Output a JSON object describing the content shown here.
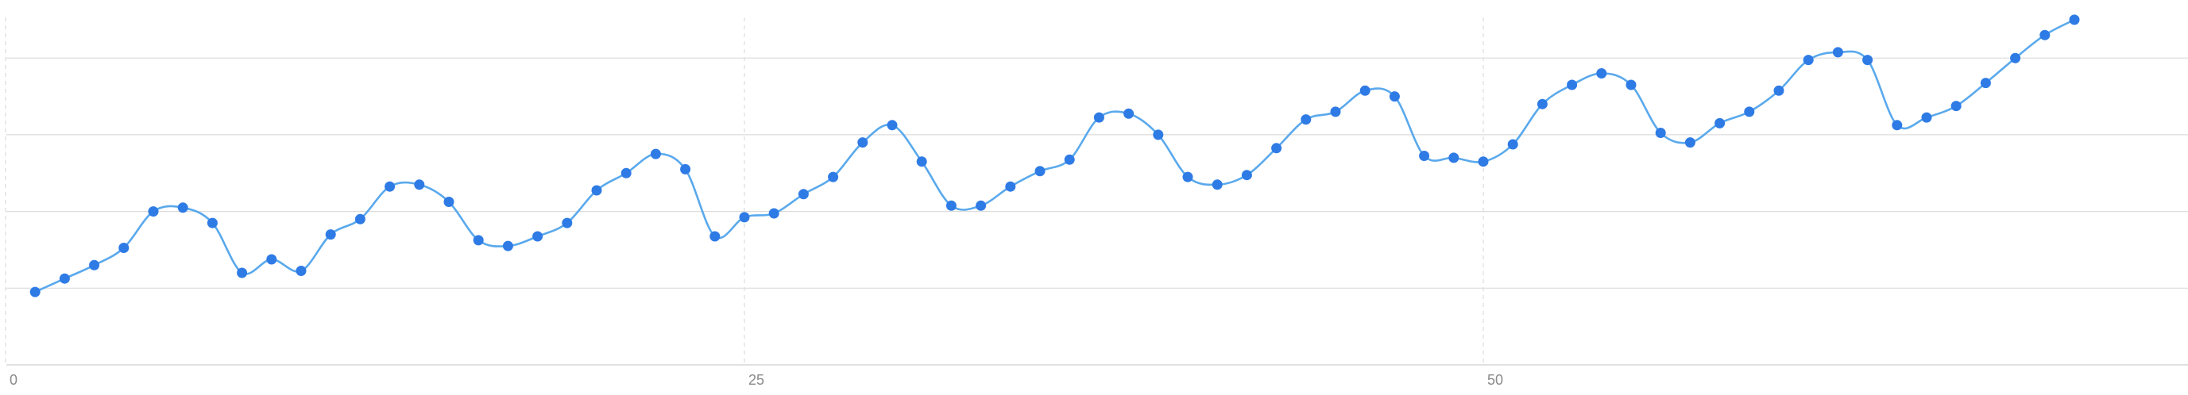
{
  "chart_data": {
    "type": "line",
    "title": "",
    "xlabel": "",
    "ylabel": "",
    "xlim": [
      -0.5,
      73
    ],
    "ylim": [
      0,
      100
    ],
    "x_ticks": [
      0,
      25,
      50
    ],
    "x_tick_labels": [
      "0",
      "25",
      "50"
    ],
    "y_gridlines": [
      20,
      40,
      60,
      80
    ],
    "grid": {
      "horizontal": true,
      "vertical": "dashed"
    },
    "legend": "none",
    "colors": {
      "line": "#5aa9ec",
      "marker": "#2f7be5",
      "grid": "#dcdcdc",
      "tick_label": "#8a8a8a"
    },
    "series": [
      {
        "x": [
          1,
          2,
          3,
          4,
          5,
          6,
          7,
          8,
          9,
          10,
          11,
          12,
          13,
          14,
          15,
          16,
          17,
          18,
          19,
          20,
          21,
          22,
          23,
          24,
          25,
          26,
          27,
          28,
          29,
          30,
          31,
          32,
          33,
          34,
          35,
          36,
          37,
          38,
          39,
          40,
          41,
          42,
          43,
          44,
          45,
          46,
          47,
          48,
          49,
          50,
          51,
          52,
          53,
          54,
          55,
          56,
          57,
          58,
          59,
          60,
          61,
          62,
          63,
          64,
          65,
          66,
          67,
          68,
          69,
          70
        ],
        "values": [
          19,
          22.5,
          26,
          30.5,
          40,
          41,
          37,
          24,
          27.5,
          24.5,
          34,
          38,
          46.5,
          47,
          42.5,
          32.5,
          31,
          33.5,
          37,
          45.5,
          50,
          55,
          51,
          33.5,
          38.5,
          39.5,
          44.5,
          49,
          58,
          62.5,
          53,
          41.5,
          41.5,
          46.5,
          50.5,
          53.5,
          64.5,
          65.5,
          60,
          49,
          47,
          49.5,
          56.5,
          64,
          66,
          71.5,
          70,
          54.5,
          54,
          53,
          57.5,
          68,
          73,
          76,
          73,
          60.5,
          58,
          63,
          66,
          71.5,
          79.5,
          81.5,
          79.5,
          62.5,
          64.5,
          67.5,
          73.5,
          80,
          86,
          90
        ]
      }
    ]
  }
}
